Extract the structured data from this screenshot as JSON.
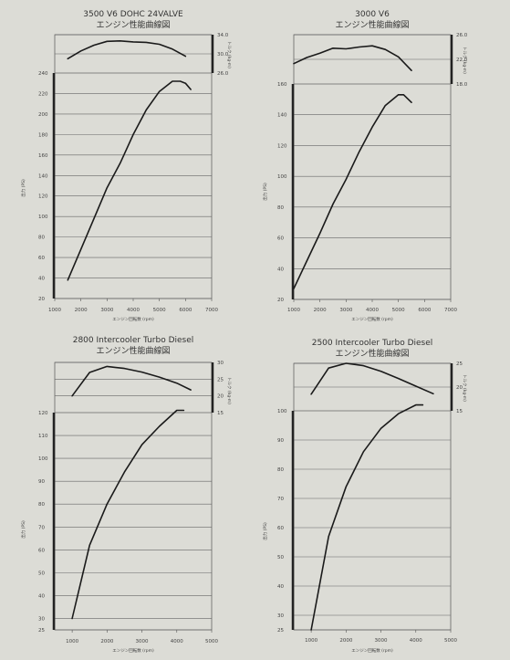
{
  "chart_data": [
    {
      "type": "line",
      "title": "3500 V6 DOHC 24VALVE",
      "subtitle": "エンジン性能曲線図",
      "xlabel": "エンジン回転数 (rpm)",
      "xlim": [
        1000,
        7000
      ],
      "x_ticks": [
        "1000",
        "2000",
        "3000",
        "4000",
        "5000",
        "6000",
        "7000"
      ],
      "torque": {
        "ylabel": "トルク (kg-m)",
        "ylim": [
          26,
          34
        ],
        "y_ticks": [
          "26.0",
          "30.0",
          "34.0"
        ],
        "x": [
          1500,
          2000,
          2500,
          3000,
          3500,
          4000,
          4500,
          5000,
          5500,
          6000
        ],
        "values": [
          29.0,
          30.6,
          31.8,
          32.6,
          32.7,
          32.5,
          32.4,
          32.0,
          31.0,
          29.5
        ]
      },
      "power": {
        "ylabel": "出力 (PS)",
        "ylim": [
          20,
          240
        ],
        "y_ticks": [
          "20",
          "40",
          "60",
          "80",
          "100",
          "120",
          "140",
          "160",
          "180",
          "200",
          "220",
          "240"
        ],
        "x": [
          1500,
          2000,
          2500,
          3000,
          3500,
          4000,
          4500,
          5000,
          5500,
          5800,
          6000,
          6200
        ],
        "values": [
          38,
          68,
          98,
          128,
          152,
          180,
          204,
          222,
          232,
          232,
          230,
          224
        ]
      }
    },
    {
      "type": "line",
      "title": "3000 V6",
      "subtitle": "エンジン性能曲線図",
      "xlabel": "エンジン回転数 (rpm)",
      "xlim": [
        1000,
        7000
      ],
      "x_ticks": [
        "1000",
        "2000",
        "3000",
        "4000",
        "5000",
        "6000",
        "7000"
      ],
      "torque": {
        "ylabel": "トルク (kg-m)",
        "ylim": [
          18,
          26
        ],
        "y_ticks": [
          "18.0",
          "22.0",
          "26.0"
        ],
        "x": [
          1000,
          1500,
          2000,
          2500,
          3000,
          3500,
          4000,
          4500,
          5000,
          5500
        ],
        "values": [
          21.3,
          22.3,
          23.0,
          23.8,
          23.7,
          24.0,
          24.2,
          23.6,
          22.4,
          20.2
        ]
      },
      "power": {
        "ylabel": "出力 (PS)",
        "ylim": [
          20,
          160
        ],
        "y_ticks": [
          "20",
          "40",
          "60",
          "80",
          "100",
          "120",
          "140",
          "160"
        ],
        "x": [
          1000,
          1500,
          2000,
          2500,
          3000,
          3500,
          4000,
          4500,
          5000,
          5200,
          5500
        ],
        "values": [
          27,
          45,
          63,
          82,
          98,
          116,
          132,
          146,
          153,
          153,
          148
        ]
      }
    },
    {
      "type": "line",
      "title": "2800 Intercooler Turbo Diesel",
      "subtitle": "エンジン性能曲線図",
      "xlabel": "エンジン回転数 (rpm)",
      "xlim": [
        500,
        5000
      ],
      "x_ticks": [
        "1000",
        "2000",
        "3000",
        "4000",
        "5000"
      ],
      "torque": {
        "ylabel": "トルク (kg-m)",
        "ylim": [
          15,
          30
        ],
        "y_ticks": [
          "15",
          "20",
          "25",
          "30"
        ],
        "x": [
          1000,
          1500,
          2000,
          2500,
          3000,
          3500,
          4000,
          4400
        ],
        "values": [
          20.0,
          27.0,
          28.8,
          28.2,
          27.1,
          25.6,
          23.8,
          21.8
        ]
      },
      "power": {
        "ylabel": "出力 (PS)",
        "ylim": [
          25,
          120
        ],
        "y_ticks": [
          "25",
          "30",
          "40",
          "50",
          "60",
          "70",
          "80",
          "90",
          "100",
          "110",
          "120"
        ],
        "x": [
          1000,
          1500,
          2000,
          2500,
          3000,
          3500,
          4000,
          4200
        ],
        "values": [
          30,
          62,
          80,
          94,
          106,
          114,
          121,
          121
        ]
      }
    },
    {
      "type": "line",
      "title": "2500 Intercooler Turbo Diesel",
      "subtitle": "エンジン性能曲線図",
      "xlabel": "エンジン回転数 (rpm)",
      "xlim": [
        500,
        5000
      ],
      "x_ticks": [
        "1000",
        "2000",
        "3000",
        "4000",
        "5000"
      ],
      "torque": {
        "ylabel": "トルク (kg-m)",
        "ylim": [
          15,
          25
        ],
        "y_ticks": [
          "15",
          "20",
          "25"
        ],
        "x": [
          1000,
          1500,
          2000,
          2500,
          3000,
          3500,
          4000,
          4500
        ],
        "values": [
          18.5,
          24.0,
          25.0,
          24.5,
          23.3,
          21.8,
          20.2,
          18.6
        ]
      },
      "power": {
        "ylabel": "出力 (PS)",
        "ylim": [
          25,
          100
        ],
        "y_ticks": [
          "25",
          "30",
          "40",
          "50",
          "60",
          "70",
          "80",
          "90",
          "100"
        ],
        "x": [
          1000,
          1500,
          2000,
          2500,
          3000,
          3500,
          4000,
          4200
        ],
        "values": [
          25,
          57,
          74,
          86,
          94,
          99,
          102,
          102
        ]
      }
    }
  ]
}
